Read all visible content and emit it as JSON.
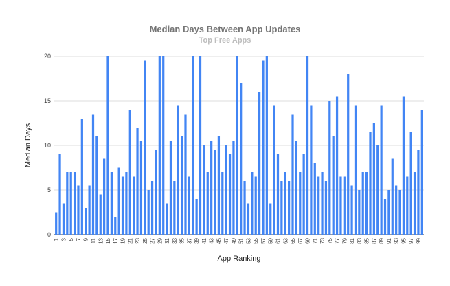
{
  "chart_data": {
    "type": "bar",
    "title": "Median Days Between App Updates",
    "subtitle": "Top Free Apps",
    "xlabel": "App Ranking",
    "ylabel": "Median Days",
    "ylim": [
      0,
      20
    ],
    "yticks": [
      0,
      5,
      10,
      15,
      20
    ],
    "grid": true,
    "legend": "none",
    "bar_color": "#4285f4",
    "categories": [
      1,
      2,
      3,
      4,
      5,
      6,
      7,
      8,
      9,
      10,
      11,
      12,
      13,
      14,
      15,
      16,
      17,
      18,
      19,
      20,
      21,
      22,
      23,
      24,
      25,
      26,
      27,
      28,
      29,
      30,
      31,
      32,
      33,
      34,
      35,
      36,
      37,
      38,
      39,
      40,
      41,
      42,
      43,
      44,
      45,
      46,
      47,
      48,
      49,
      50,
      51,
      52,
      53,
      54,
      55,
      56,
      57,
      58,
      59,
      60,
      61,
      62,
      63,
      64,
      65,
      66,
      67,
      68,
      69,
      70,
      71,
      72,
      73,
      74,
      75,
      76,
      77,
      78,
      79,
      80,
      81,
      82,
      83,
      84,
      85,
      86,
      87,
      88,
      89,
      90,
      91,
      92,
      93,
      94,
      95,
      96,
      97,
      98,
      99,
      100
    ],
    "xtick_labels": [
      "1",
      "3",
      "5",
      "7",
      "9",
      "11",
      "13",
      "15",
      "17",
      "19",
      "21",
      "23",
      "25",
      "27",
      "29",
      "31",
      "33",
      "35",
      "37",
      "39",
      "41",
      "43",
      "45",
      "47",
      "49",
      "51",
      "53",
      "55",
      "57",
      "59",
      "61",
      "63",
      "65",
      "67",
      "69",
      "71",
      "73",
      "75",
      "77",
      "79",
      "81",
      "83",
      "85",
      "87",
      "89",
      "91",
      "93",
      "95",
      "97",
      "99"
    ],
    "values": [
      2.5,
      9,
      3.5,
      7,
      7,
      7,
      5.5,
      13,
      3,
      5.5,
      13.5,
      11,
      4.5,
      8.5,
      20,
      7,
      2,
      7.5,
      6.5,
      7,
      14,
      6.5,
      12,
      10.5,
      19.5,
      5,
      6,
      9.5,
      20,
      20,
      3.5,
      10.5,
      6,
      14.5,
      11,
      13.5,
      6.5,
      20,
      4,
      20,
      10,
      7,
      10.5,
      9.5,
      11,
      7,
      10,
      9,
      10.5,
      20,
      17,
      6,
      3.5,
      7,
      6.5,
      16,
      19.5,
      20,
      3.5,
      14.5,
      9,
      6,
      7,
      6,
      13.5,
      10.5,
      7,
      9,
      20,
      14.5,
      8,
      6.5,
      7,
      6,
      15,
      11,
      15.5,
      6.5,
      6.5,
      18,
      5.5,
      14.5,
      5,
      7,
      7,
      11.5,
      12.5,
      10,
      14.5,
      4,
      5,
      8.5,
      5.5,
      5,
      15.5,
      6.5,
      11.5,
      7,
      9.5,
      14
    ]
  }
}
